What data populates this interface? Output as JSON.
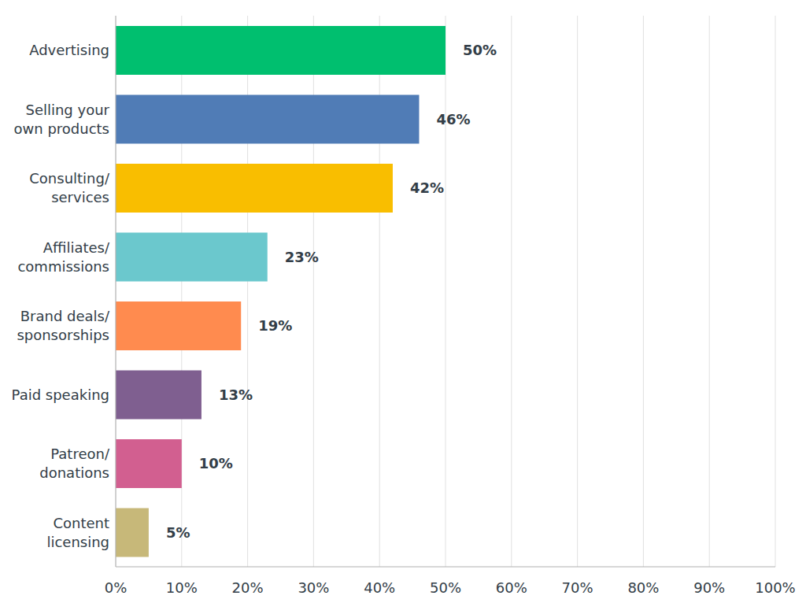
{
  "chart_data": {
    "type": "bar",
    "orientation": "horizontal",
    "categories": [
      "Advertising",
      "Selling your own products",
      "Consulting/services",
      "Affiliates/commissions",
      "Brand deals/sponsorships",
      "Paid speaking",
      "Patreon/donations",
      "Content licensing"
    ],
    "values": [
      50,
      46,
      42,
      23,
      19,
      13,
      10,
      5
    ],
    "value_labels": [
      "50%",
      "46%",
      "42%",
      "23%",
      "19%",
      "13%",
      "10%",
      "5%"
    ],
    "colors": [
      "#00bf6f",
      "#507cb6",
      "#f9be00",
      "#6bc8cd",
      "#ff8b4f",
      "#7f5f90",
      "#d25f90",
      "#c7b879"
    ],
    "xlim": [
      0,
      100
    ],
    "xticks": [
      {
        "value": 0,
        "label": "0%"
      },
      {
        "value": 10,
        "label": "10%"
      },
      {
        "value": 20,
        "label": "20%"
      },
      {
        "value": 30,
        "label": "30%"
      },
      {
        "value": 40,
        "label": "40%"
      },
      {
        "value": 50,
        "label": "50%"
      },
      {
        "value": 60,
        "label": "60%"
      },
      {
        "value": 70,
        "label": "70%"
      },
      {
        "value": 80,
        "label": "80%"
      },
      {
        "value": 90,
        "label": "90%"
      },
      {
        "value": 100,
        "label": "100%"
      }
    ],
    "grid": true,
    "data_labels": true
  }
}
